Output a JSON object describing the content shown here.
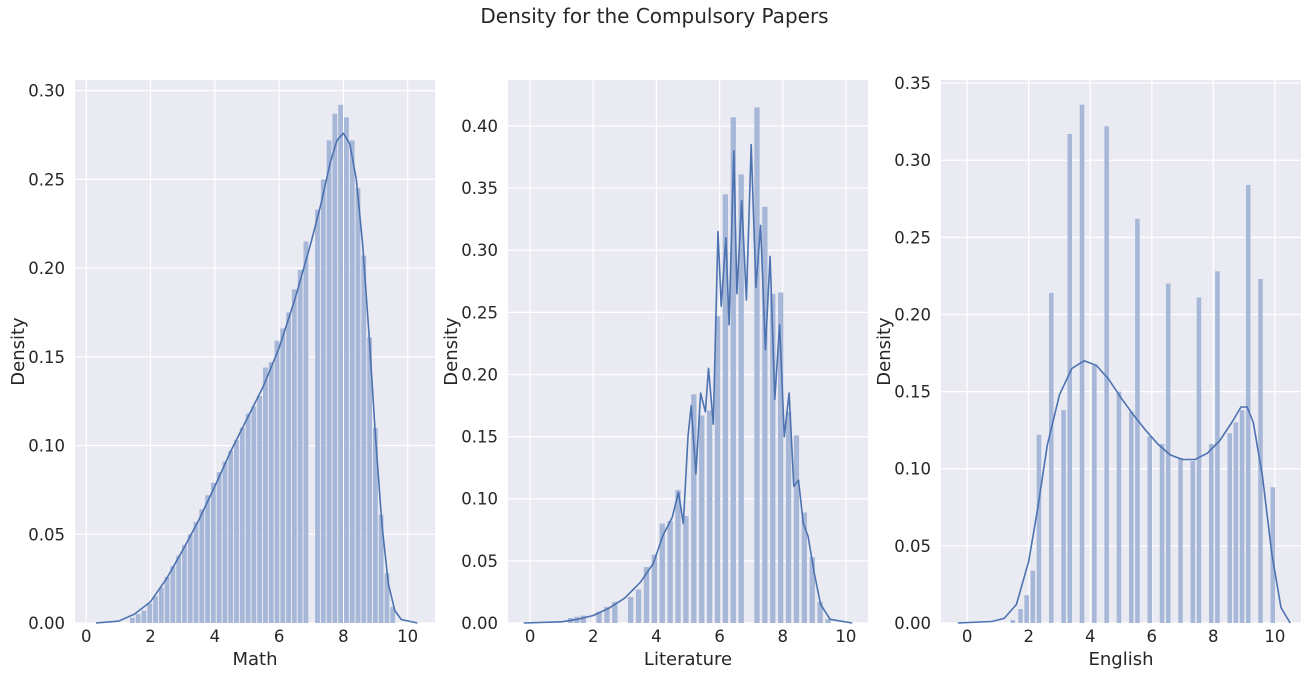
{
  "figure": {
    "suptitle": "Density for the Compulsory Papers"
  },
  "colors": {
    "panel_bg": "#EAEAF2",
    "grid": "#FFFFFF",
    "bar": "#A6B7D8",
    "kde": "#4C72B0",
    "text": "#262626"
  },
  "chart_data": [
    {
      "type": "bar",
      "title": "",
      "xlabel": "Math",
      "ylabel": "Density",
      "xlim": [
        -0.35,
        10.85
      ],
      "ylim": [
        0,
        0.306
      ],
      "xticks": [
        0,
        2,
        4,
        6,
        8,
        10
      ],
      "yticks": [
        0.0,
        0.05,
        0.1,
        0.15,
        0.2,
        0.25,
        0.3
      ],
      "ytick_labels": [
        "0.00",
        "0.05",
        "0.10",
        "0.15",
        "0.20",
        "0.25",
        "0.30"
      ],
      "grid": true,
      "bin_width": 0.18,
      "bars": [
        {
          "x": 1.45,
          "y": 0.003
        },
        {
          "x": 1.63,
          "y": 0.005
        },
        {
          "x": 1.81,
          "y": 0.007
        },
        {
          "x": 1.99,
          "y": 0.011
        },
        {
          "x": 2.17,
          "y": 0.015
        },
        {
          "x": 2.35,
          "y": 0.02
        },
        {
          "x": 2.53,
          "y": 0.026
        },
        {
          "x": 2.71,
          "y": 0.032
        },
        {
          "x": 2.89,
          "y": 0.038
        },
        {
          "x": 3.07,
          "y": 0.044
        },
        {
          "x": 3.25,
          "y": 0.05
        },
        {
          "x": 3.43,
          "y": 0.057
        },
        {
          "x": 3.61,
          "y": 0.064
        },
        {
          "x": 3.79,
          "y": 0.072
        },
        {
          "x": 3.97,
          "y": 0.079
        },
        {
          "x": 4.15,
          "y": 0.085
        },
        {
          "x": 4.33,
          "y": 0.091
        },
        {
          "x": 4.51,
          "y": 0.097
        },
        {
          "x": 4.69,
          "y": 0.103
        },
        {
          "x": 4.87,
          "y": 0.11
        },
        {
          "x": 5.05,
          "y": 0.118
        },
        {
          "x": 5.23,
          "y": 0.122
        },
        {
          "x": 5.41,
          "y": 0.128
        },
        {
          "x": 5.59,
          "y": 0.144
        },
        {
          "x": 5.77,
          "y": 0.147
        },
        {
          "x": 5.95,
          "y": 0.159
        },
        {
          "x": 6.13,
          "y": 0.166
        },
        {
          "x": 6.31,
          "y": 0.175
        },
        {
          "x": 6.49,
          "y": 0.188
        },
        {
          "x": 6.67,
          "y": 0.199
        },
        {
          "x": 6.85,
          "y": 0.215
        },
        {
          "x": 7.03,
          "y": 0.0
        },
        {
          "x": 7.21,
          "y": 0.233
        },
        {
          "x": 7.39,
          "y": 0.25
        },
        {
          "x": 7.57,
          "y": 0.272
        },
        {
          "x": 7.75,
          "y": 0.287
        },
        {
          "x": 7.93,
          "y": 0.292
        },
        {
          "x": 8.11,
          "y": 0.285
        },
        {
          "x": 8.29,
          "y": 0.272
        },
        {
          "x": 8.47,
          "y": 0.245
        },
        {
          "x": 8.65,
          "y": 0.207
        },
        {
          "x": 8.83,
          "y": 0.161
        },
        {
          "x": 9.01,
          "y": 0.11
        },
        {
          "x": 9.19,
          "y": 0.061
        },
        {
          "x": 9.37,
          "y": 0.028
        },
        {
          "x": 9.55,
          "y": 0.009
        }
      ],
      "kde": [
        [
          0.3,
          0
        ],
        [
          1.0,
          0.001
        ],
        [
          1.5,
          0.005
        ],
        [
          2.0,
          0.012
        ],
        [
          2.5,
          0.025
        ],
        [
          3.0,
          0.041
        ],
        [
          3.5,
          0.058
        ],
        [
          4.0,
          0.077
        ],
        [
          4.5,
          0.097
        ],
        [
          5.0,
          0.115
        ],
        [
          5.5,
          0.133
        ],
        [
          6.0,
          0.155
        ],
        [
          6.5,
          0.183
        ],
        [
          7.0,
          0.215
        ],
        [
          7.3,
          0.236
        ],
        [
          7.6,
          0.26
        ],
        [
          7.8,
          0.272
        ],
        [
          8.0,
          0.276
        ],
        [
          8.2,
          0.27
        ],
        [
          8.4,
          0.25
        ],
        [
          8.6,
          0.213
        ],
        [
          8.8,
          0.162
        ],
        [
          9.0,
          0.105
        ],
        [
          9.2,
          0.055
        ],
        [
          9.4,
          0.022
        ],
        [
          9.6,
          0.007
        ],
        [
          9.8,
          0.002
        ],
        [
          10.3,
          0
        ]
      ]
    },
    {
      "type": "bar",
      "title": "",
      "xlabel": "Literature",
      "ylabel": "Density",
      "xlim": [
        -0.7,
        10.7
      ],
      "ylim": [
        0,
        0.437
      ],
      "xticks": [
        0,
        2,
        4,
        6,
        8,
        10
      ],
      "yticks": [
        0.0,
        0.05,
        0.1,
        0.15,
        0.2,
        0.25,
        0.3,
        0.35,
        0.4
      ],
      "ytick_labels": [
        "0.00",
        "0.05",
        "0.10",
        "0.15",
        "0.20",
        "0.25",
        "0.30",
        "0.35",
        "0.40"
      ],
      "grid": true,
      "bin_width": 0.2,
      "bars": [
        {
          "x": 1.3,
          "y": 0.004
        },
        {
          "x": 1.5,
          "y": 0.005
        },
        {
          "x": 1.7,
          "y": 0.006
        },
        {
          "x": 2.2,
          "y": 0.009
        },
        {
          "x": 2.45,
          "y": 0.013
        },
        {
          "x": 2.7,
          "y": 0.017
        },
        {
          "x": 3.2,
          "y": 0.021
        },
        {
          "x": 3.45,
          "y": 0.027
        },
        {
          "x": 3.7,
          "y": 0.045
        },
        {
          "x": 3.95,
          "y": 0.055
        },
        {
          "x": 4.2,
          "y": 0.08
        },
        {
          "x": 4.45,
          "y": 0.082
        },
        {
          "x": 4.7,
          "y": 0.107
        },
        {
          "x": 4.95,
          "y": 0.086
        },
        {
          "x": 5.2,
          "y": 0.184
        },
        {
          "x": 5.45,
          "y": 0.167
        },
        {
          "x": 5.7,
          "y": 0.171
        },
        {
          "x": 5.95,
          "y": 0.247
        },
        {
          "x": 6.2,
          "y": 0.345
        },
        {
          "x": 6.45,
          "y": 0.407
        },
        {
          "x": 6.7,
          "y": 0.361
        },
        {
          "x": 6.95,
          "y": 0.0
        },
        {
          "x": 7.2,
          "y": 0.415
        },
        {
          "x": 7.45,
          "y": 0.335
        },
        {
          "x": 7.7,
          "y": 0.265
        },
        {
          "x": 7.95,
          "y": 0.266
        },
        {
          "x": 8.2,
          "y": 0.17
        },
        {
          "x": 8.45,
          "y": 0.151
        },
        {
          "x": 8.7,
          "y": 0.089
        },
        {
          "x": 8.95,
          "y": 0.053
        },
        {
          "x": 9.2,
          "y": 0.017
        },
        {
          "x": 9.45,
          "y": 0.003
        }
      ],
      "kde": [
        [
          -0.2,
          0
        ],
        [
          1.0,
          0.001
        ],
        [
          1.5,
          0.003
        ],
        [
          2.0,
          0.006
        ],
        [
          2.5,
          0.012
        ],
        [
          3.0,
          0.02
        ],
        [
          3.5,
          0.033
        ],
        [
          3.9,
          0.048
        ],
        [
          4.2,
          0.07
        ],
        [
          4.5,
          0.085
        ],
        [
          4.7,
          0.105
        ],
        [
          4.85,
          0.08
        ],
        [
          5.0,
          0.15
        ],
        [
          5.1,
          0.175
        ],
        [
          5.25,
          0.12
        ],
        [
          5.4,
          0.185
        ],
        [
          5.55,
          0.17
        ],
        [
          5.65,
          0.205
        ],
        [
          5.8,
          0.16
        ],
        [
          5.95,
          0.315
        ],
        [
          6.05,
          0.255
        ],
        [
          6.2,
          0.31
        ],
        [
          6.3,
          0.24
        ],
        [
          6.45,
          0.38
        ],
        [
          6.55,
          0.265
        ],
        [
          6.7,
          0.34
        ],
        [
          6.85,
          0.26
        ],
        [
          7.0,
          0.385
        ],
        [
          7.15,
          0.27
        ],
        [
          7.3,
          0.32
        ],
        [
          7.45,
          0.22
        ],
        [
          7.6,
          0.295
        ],
        [
          7.75,
          0.18
        ],
        [
          7.9,
          0.24
        ],
        [
          8.05,
          0.15
        ],
        [
          8.2,
          0.185
        ],
        [
          8.35,
          0.11
        ],
        [
          8.5,
          0.115
        ],
        [
          8.65,
          0.08
        ],
        [
          8.8,
          0.07
        ],
        [
          9.0,
          0.04
        ],
        [
          9.2,
          0.015
        ],
        [
          9.5,
          0.003
        ],
        [
          10.2,
          0
        ]
      ]
    },
    {
      "type": "bar",
      "title": "",
      "xlabel": "English",
      "ylabel": "Density",
      "xlim": [
        -0.85,
        10.85
      ],
      "ylim": [
        0,
        0.352
      ],
      "xticks": [
        0,
        2,
        4,
        6,
        8,
        10
      ],
      "yticks": [
        0.0,
        0.05,
        0.1,
        0.15,
        0.2,
        0.25,
        0.3,
        0.35
      ],
      "ytick_labels": [
        "0.00",
        "0.05",
        "0.10",
        "0.15",
        "0.20",
        "0.25",
        "0.30",
        "0.35"
      ],
      "grid": true,
      "bin_width": 0.18,
      "bars": [
        {
          "x": 1.5,
          "y": 0.002
        },
        {
          "x": 1.75,
          "y": 0.009
        },
        {
          "x": 1.95,
          "y": 0.018
        },
        {
          "x": 2.15,
          "y": 0.034
        },
        {
          "x": 2.35,
          "y": 0.122
        },
        {
          "x": 2.75,
          "y": 0.214
        },
        {
          "x": 3.15,
          "y": 0.138
        },
        {
          "x": 3.35,
          "y": 0.317
        },
        {
          "x": 3.75,
          "y": 0.336
        },
        {
          "x": 4.15,
          "y": 0.167
        },
        {
          "x": 4.55,
          "y": 0.322
        },
        {
          "x": 4.95,
          "y": 0.15
        },
        {
          "x": 5.35,
          "y": 0.137
        },
        {
          "x": 5.55,
          "y": 0.262
        },
        {
          "x": 5.95,
          "y": 0.121
        },
        {
          "x": 6.35,
          "y": 0.116
        },
        {
          "x": 6.55,
          "y": 0.22
        },
        {
          "x": 6.95,
          "y": 0.107
        },
        {
          "x": 7.35,
          "y": 0.105
        },
        {
          "x": 7.55,
          "y": 0.211
        },
        {
          "x": 7.95,
          "y": 0.116
        },
        {
          "x": 8.15,
          "y": 0.228
        },
        {
          "x": 8.55,
          "y": 0.123
        },
        {
          "x": 8.75,
          "y": 0.13
        },
        {
          "x": 8.95,
          "y": 0.138
        },
        {
          "x": 9.15,
          "y": 0.284
        },
        {
          "x": 9.55,
          "y": 0.223
        },
        {
          "x": 9.95,
          "y": 0.088
        }
      ],
      "kde": [
        [
          -0.3,
          0
        ],
        [
          0.8,
          0.001
        ],
        [
          1.2,
          0.003
        ],
        [
          1.6,
          0.012
        ],
        [
          2.0,
          0.04
        ],
        [
          2.3,
          0.075
        ],
        [
          2.6,
          0.115
        ],
        [
          3.0,
          0.148
        ],
        [
          3.4,
          0.165
        ],
        [
          3.8,
          0.17
        ],
        [
          4.2,
          0.167
        ],
        [
          4.6,
          0.158
        ],
        [
          5.0,
          0.146
        ],
        [
          5.4,
          0.135
        ],
        [
          5.8,
          0.125
        ],
        [
          6.2,
          0.116
        ],
        [
          6.6,
          0.109
        ],
        [
          7.0,
          0.106
        ],
        [
          7.4,
          0.106
        ],
        [
          7.8,
          0.11
        ],
        [
          8.2,
          0.118
        ],
        [
          8.6,
          0.13
        ],
        [
          8.9,
          0.14
        ],
        [
          9.1,
          0.14
        ],
        [
          9.3,
          0.13
        ],
        [
          9.6,
          0.095
        ],
        [
          9.9,
          0.045
        ],
        [
          10.2,
          0.01
        ],
        [
          10.5,
          0
        ]
      ]
    }
  ]
}
